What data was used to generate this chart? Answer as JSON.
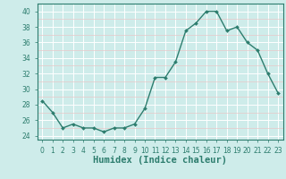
{
  "x": [
    0,
    1,
    2,
    3,
    4,
    5,
    6,
    7,
    8,
    9,
    10,
    11,
    12,
    13,
    14,
    15,
    16,
    17,
    18,
    19,
    20,
    21,
    22,
    23
  ],
  "y": [
    28.5,
    27,
    25,
    25.5,
    25,
    25,
    24.5,
    25,
    25,
    25.5,
    27.5,
    31.5,
    31.5,
    33.5,
    37.5,
    38.5,
    40,
    40,
    37.5,
    38,
    36,
    35,
    32,
    29.5
  ],
  "xlabel": "Humidex (Indice chaleur)",
  "ylabel": "",
  "xlim": [
    -0.5,
    23.5
  ],
  "ylim": [
    23.5,
    41
  ],
  "yticks": [
    24,
    26,
    28,
    30,
    32,
    34,
    36,
    38,
    40
  ],
  "xticks": [
    0,
    1,
    2,
    3,
    4,
    5,
    6,
    7,
    8,
    9,
    10,
    11,
    12,
    13,
    14,
    15,
    16,
    17,
    18,
    19,
    20,
    21,
    22,
    23
  ],
  "line_color": "#2d7d6e",
  "marker": "D",
  "marker_size": 2.0,
  "background_color": "#ceecea",
  "grid_major_color": "#ffffff",
  "grid_minor_color": "#e8c8c8",
  "tick_fontsize": 5.5,
  "xlabel_fontsize": 7.5,
  "line_width": 1.0
}
